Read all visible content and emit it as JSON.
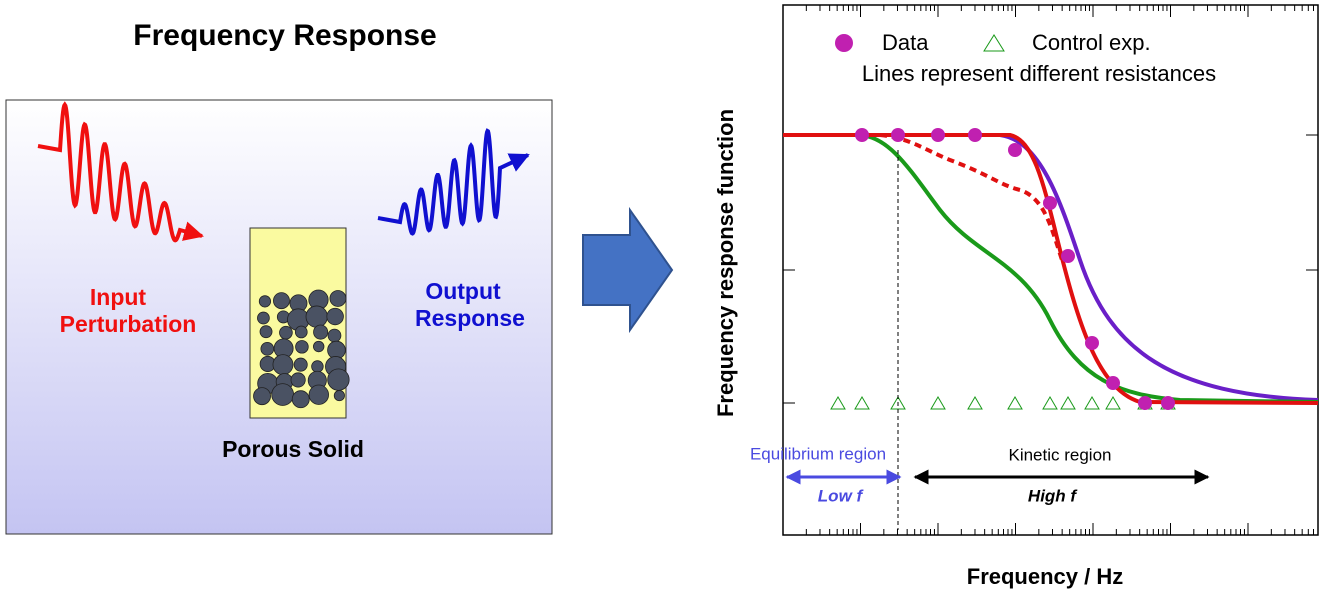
{
  "schematic": {
    "title": "Frequency Response",
    "input_label": [
      "Input",
      "Perturbation"
    ],
    "output_label": [
      "Output",
      "Response"
    ],
    "solid_label": "Porous Solid"
  },
  "plot": {
    "legend": {
      "data": "Data",
      "control": "Control exp.",
      "note": "Lines represent different resistances"
    },
    "y_label": "Frequency response function",
    "x_label": "Frequency / Hz",
    "regions": {
      "equilibrium": "Equilibrium region",
      "low": "Low f",
      "kinetic": "Kinetic region",
      "high": "High f"
    }
  }
}
